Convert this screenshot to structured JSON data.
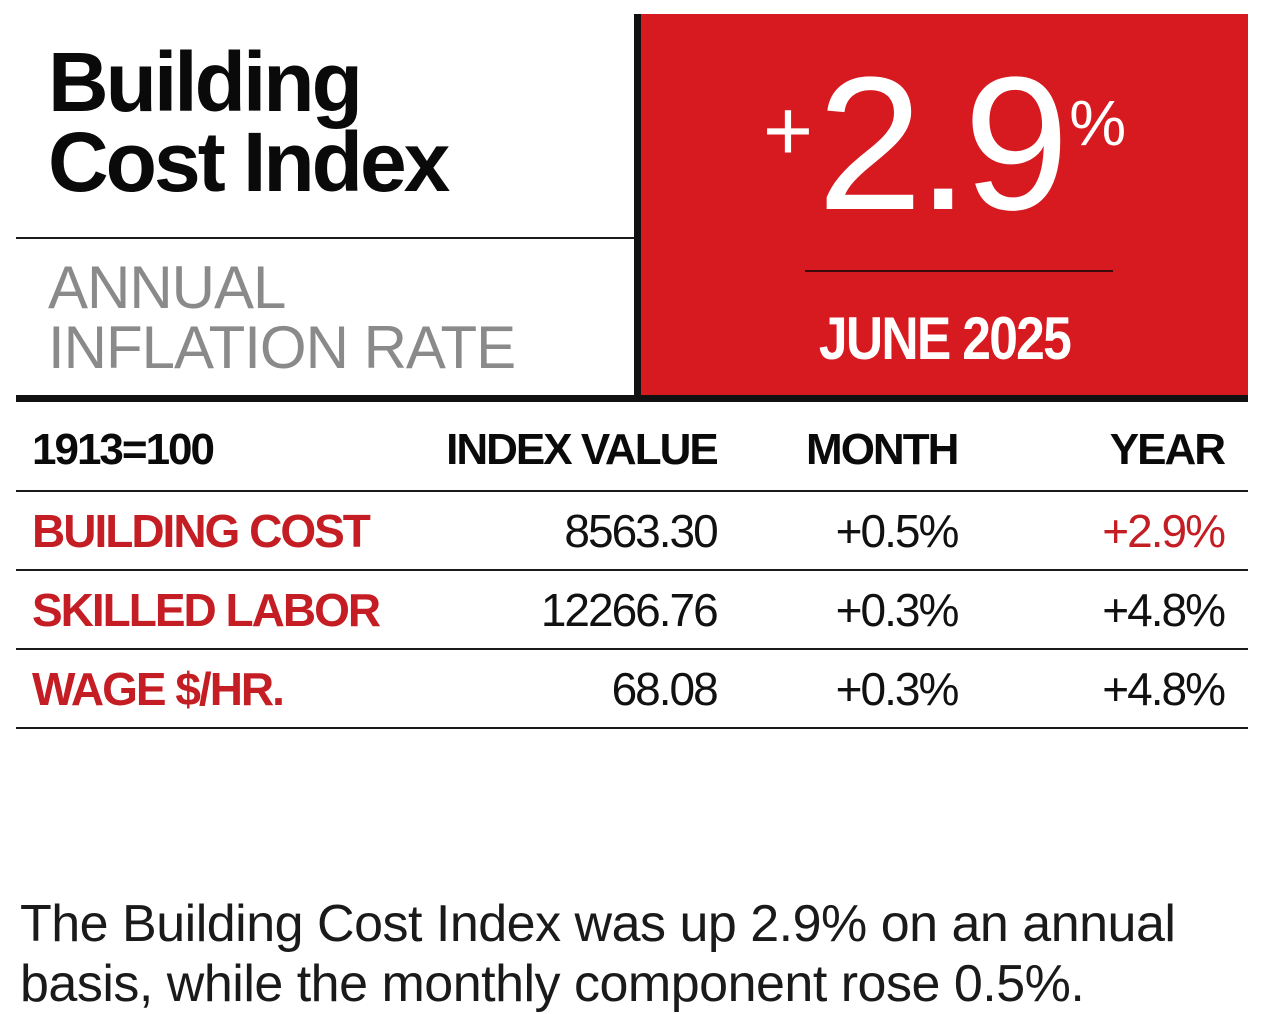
{
  "title": {
    "line1": "Building",
    "line2": "Cost Index"
  },
  "subtitle": {
    "line1": "ANNUAL",
    "line2": "INFLATION RATE"
  },
  "headline_rate": {
    "sign": "+",
    "value": "2.9",
    "unit": "%"
  },
  "period": "JUNE 2025",
  "table": {
    "headers": {
      "base": "1913=100",
      "index_value": "INDEX VALUE",
      "month": "MONTH",
      "year": "YEAR"
    },
    "rows": [
      {
        "label": "BUILDING COST",
        "index_value": "8563.30",
        "month": "+0.5%",
        "year": "+2.9%"
      },
      {
        "label": "SKILLED LABOR",
        "index_value": "12266.76",
        "month": "+0.3%",
        "year": "+4.8%"
      },
      {
        "label": "WAGE $/HR.",
        "index_value": "68.08",
        "month": "+0.3%",
        "year": "+4.8%"
      }
    ]
  },
  "caption": "The Building Cost Index was up 2.9% on an annual basis, while the monthly component rose 0.5%.",
  "colors": {
    "accent_red": "#d71920",
    "label_red": "#c41e24",
    "subtitle_gray": "#8a8a8a"
  }
}
